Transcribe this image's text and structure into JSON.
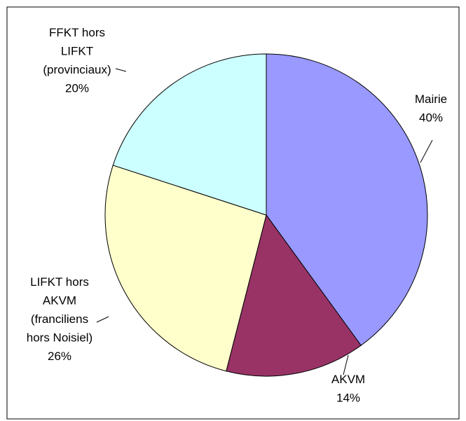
{
  "chart_data": {
    "type": "pie",
    "categories": [
      "Mairie",
      "AKVM",
      "LIFKT hors\nAKVM\n(franciliens\nhors Noisiel)",
      "FFKT hors\nLIFKT\n(provinciaux)"
    ],
    "values": [
      40,
      14,
      26,
      20
    ],
    "value_labels": [
      "40%",
      "14%",
      "26%",
      "20%"
    ],
    "colors": [
      "#9999ff",
      "#993366",
      "#ffffcc",
      "#ccffff"
    ]
  }
}
